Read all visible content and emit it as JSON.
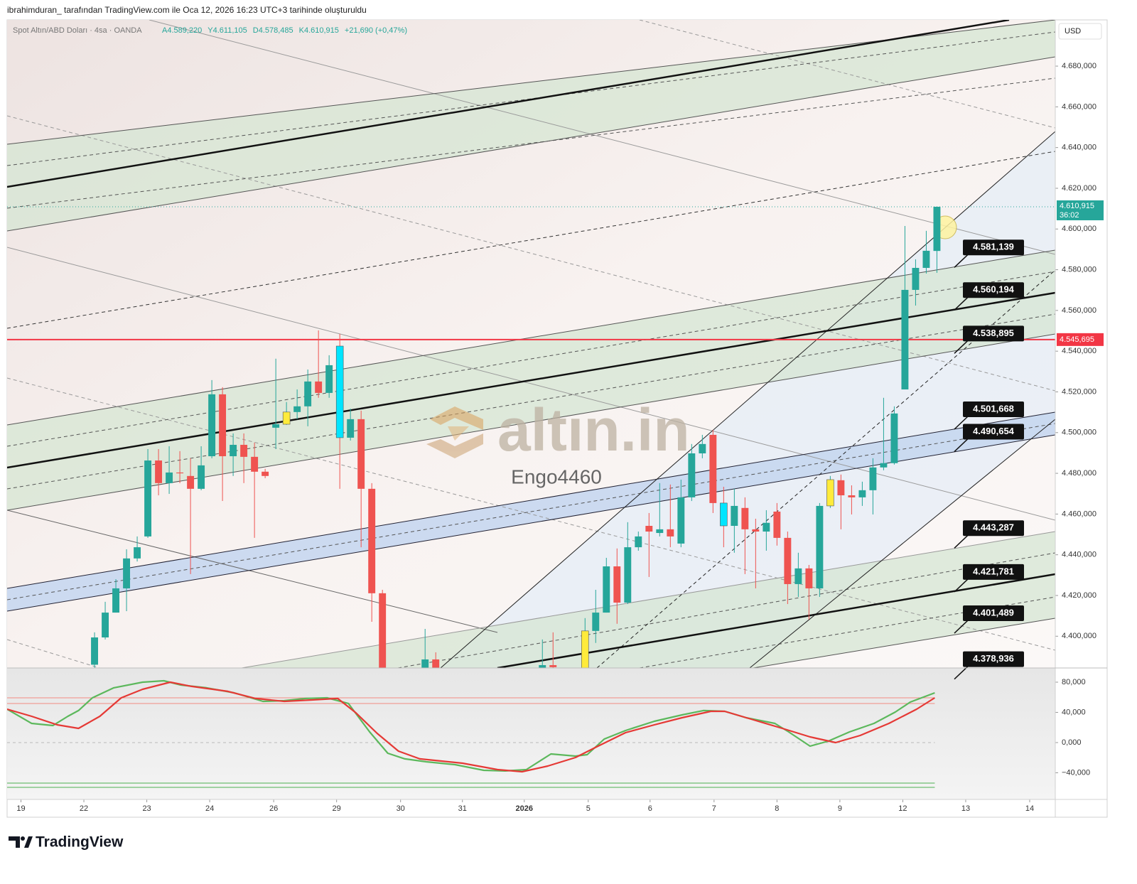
{
  "header": {
    "attribution": "ibrahimduran_ tarafından TradingView.com ile Oca 12, 2026 16:23 UTC+3 tarihinde oluşturuldu"
  },
  "chart_data": [
    {
      "type": "candlestick",
      "symbol": "Spot Altın/ABD Doları · 4sa · OANDA",
      "legend_values": [
        "A4.589,220",
        "Y4.611,105",
        "D4.578,485",
        "K4.610,915",
        "+21,690 (+0,47%)"
      ],
      "currency": "USD",
      "watermark": "altın.in",
      "author": "Engo4460",
      "up_color": "#26a69a",
      "down_color": "#ef5350",
      "highlights": [
        {
          "x": 25,
          "color": "#ffeb3b"
        },
        {
          "x": 30,
          "color": "#00e5ff"
        },
        {
          "x": 53,
          "color": "#ffeb3b"
        },
        {
          "x": 66,
          "color": "#00e5ff"
        },
        {
          "x": 76,
          "color": "#ffeb3b"
        }
      ],
      "x": [
        7,
        8,
        9,
        10,
        11,
        12,
        13,
        14,
        15,
        16,
        17,
        18,
        19,
        20,
        21,
        22,
        23,
        24,
        25,
        26,
        27,
        28,
        29,
        30,
        31,
        32,
        33,
        34,
        38,
        39,
        49,
        50,
        53,
        54,
        55,
        56,
        57,
        58,
        59,
        60,
        61,
        62,
        63,
        64,
        65,
        66,
        67,
        68,
        69,
        70,
        71,
        72,
        73,
        74,
        75,
        76,
        77,
        78,
        79,
        80,
        81,
        82,
        83,
        84,
        85,
        86
      ],
      "open": [
        4386.0,
        4399.4,
        4411.6,
        4423.5,
        4438.2,
        4449.0,
        4486.3,
        4475.2,
        4480.4,
        4478.7,
        4472.4,
        4488.4,
        4518.8,
        4488.4,
        4494.0,
        4488.1,
        4480.8,
        4502.4,
        4504.1,
        4510.1,
        4512.9,
        4525.1,
        4519.5,
        4542.5,
        4497.5,
        4506.6,
        4472.4,
        4421.1,
        4380.0,
        4388.6,
        4384.4,
        4385.8,
        4380.0,
        4402.6,
        4411.6,
        4434.3,
        4416.5,
        4443.7,
        4454.2,
        4450.7,
        4452.5,
        4445.5,
        4468.2,
        4489.8,
        4498.9,
        4465.4,
        4454.2,
        4463.0,
        4452.5,
        4451.4,
        4461.2,
        4448.3,
        4425.6,
        4433.3,
        4423.5,
        4464.0,
        4476.6,
        4469.2,
        4468.2,
        4471.7,
        4482.9,
        4485.0,
        4521.2,
        4570.1,
        4580.9,
        4589.22
      ],
      "high": [
        4401.9,
        4416.9,
        4428.0,
        4442.7,
        4449.0,
        4491.9,
        4491.9,
        4493.3,
        4490.9,
        4487.4,
        4493.3,
        4525.8,
        4522.3,
        4499.6,
        4499.6,
        4495.1,
        4482.2,
        4536.3,
        4515.0,
        4521.2,
        4531.0,
        4550.2,
        4538.0,
        4548.5,
        4511.8,
        4510.8,
        4475.2,
        4422.8,
        4403.6,
        4392.1,
        4398.4,
        4401.9,
        4408.9,
        4422.8,
        4438.5,
        4443.1,
        4456.0,
        4451.4,
        4460.5,
        4475.2,
        4474.5,
        4476.9,
        4494.4,
        4498.9,
        4501.3,
        4473.4,
        4472.4,
        4468.2,
        4457.7,
        4461.9,
        4465.4,
        4451.4,
        4441.0,
        4435.0,
        4465.4,
        4478.7,
        4479.4,
        4474.1,
        4475.9,
        4487.4,
        4517.1,
        4512.9,
        4601.5,
        4585.1,
        4599.1,
        4611.105
      ],
      "low": [
        4384.4,
        4398.4,
        4411.6,
        4412.3,
        4436.7,
        4448.3,
        4469.2,
        4469.9,
        4475.2,
        4430.5,
        4471.7,
        4487.4,
        4466.4,
        4478.7,
        4475.2,
        4448.3,
        4477.6,
        4491.9,
        4503.8,
        4506.6,
        4503.1,
        4517.1,
        4517.1,
        4472.4,
        4496.1,
        4443.7,
        4407.1,
        4380.0,
        4379.0,
        4380.0,
        4383.0,
        4383.0,
        4378.0,
        4396.7,
        4411.6,
        4406.1,
        4415.8,
        4442.0,
        4429.1,
        4449.0,
        4443.7,
        4443.7,
        4466.4,
        4487.4,
        4460.5,
        4443.7,
        4441.0,
        4430.5,
        4423.5,
        4442.0,
        4444.5,
        4415.8,
        4419.3,
        4408.2,
        4419.3,
        4463.0,
        4452.5,
        4459.8,
        4464.0,
        4459.8,
        4481.5,
        4484.3,
        4521.2,
        4562.4,
        4578.1,
        4578.485
      ],
      "close": [
        4399.4,
        4411.6,
        4423.5,
        4438.2,
        4443.7,
        4486.3,
        4475.2,
        4480.4,
        4480.0,
        4472.4,
        4483.9,
        4518.8,
        4488.4,
        4494.0,
        4488.1,
        4480.8,
        4478.7,
        4504.1,
        4510.1,
        4512.9,
        4525.1,
        4519.5,
        4533.1,
        4497.5,
        4506.6,
        4472.4,
        4421.1,
        4382.0,
        4388.6,
        4382.0,
        4385.8,
        4384.8,
        4402.6,
        4411.6,
        4434.3,
        4416.5,
        4443.7,
        4449.0,
        4451.4,
        4452.5,
        4449.0,
        4468.2,
        4489.8,
        4494.4,
        4465.4,
        4454.2,
        4464.0,
        4452.5,
        4451.4,
        4455.7,
        4448.3,
        4425.6,
        4433.3,
        4423.5,
        4464.0,
        4476.9,
        4469.2,
        4468.2,
        4471.7,
        4482.9,
        4485.0,
        4509.4,
        4570.1,
        4580.9,
        4589.3,
        4610.915
      ],
      "xlim": [
        -1.2,
        97.1
      ],
      "xticks": [
        {
          "value": 0.1,
          "label": "19"
        },
        {
          "value": 6.0,
          "label": "22"
        },
        {
          "value": 11.9,
          "label": "23"
        },
        {
          "value": 17.8,
          "label": "24"
        },
        {
          "value": 23.8,
          "label": "26"
        },
        {
          "value": 29.7,
          "label": "29"
        },
        {
          "value": 35.7,
          "label": "30"
        },
        {
          "value": 41.5,
          "label": "31"
        },
        {
          "value": 47.3,
          "label": "2026"
        },
        {
          "value": 53.3,
          "label": "5"
        },
        {
          "value": 59.1,
          "label": "6"
        },
        {
          "value": 65.1,
          "label": "7"
        },
        {
          "value": 71.0,
          "label": "8"
        },
        {
          "value": 76.9,
          "label": "9"
        },
        {
          "value": 82.8,
          "label": "12"
        },
        {
          "value": 88.7,
          "label": "13"
        },
        {
          "value": 94.7,
          "label": "14"
        }
      ],
      "ylim": [
        4384.4,
        4702.7
      ],
      "yticks": [
        {
          "value": 4400,
          "label": "4.400,000"
        },
        {
          "value": 4420,
          "label": "4.420,000"
        },
        {
          "value": 4440,
          "label": "4.440,000"
        },
        {
          "value": 4460,
          "label": "4.460,000"
        },
        {
          "value": 4480,
          "label": "4.480,000"
        },
        {
          "value": 4500,
          "label": "4.500,000"
        },
        {
          "value": 4520,
          "label": "4.520,000"
        },
        {
          "value": 4540,
          "label": "4.540,000"
        },
        {
          "value": 4560,
          "label": "4.560,000"
        },
        {
          "value": 4580,
          "label": "4.580,000"
        },
        {
          "value": 4600,
          "label": "4.600,000"
        },
        {
          "value": 4620,
          "label": "4.620,000"
        },
        {
          "value": 4640,
          "label": "4.640,000"
        },
        {
          "value": 4660,
          "label": "4.660,000"
        },
        {
          "value": 4680,
          "label": "4.680,000"
        }
      ],
      "hline": {
        "value": 4545.695,
        "label": "4.545,695",
        "color": "#f23645"
      },
      "current_price": {
        "value": 4610.915,
        "label": "4.610,915",
        "countdown": "36:02",
        "color": "#26a69a"
      },
      "price_callouts": [
        {
          "value": 4581.139,
          "label": "4.581,139"
        },
        {
          "value": 4560.194,
          "label": "4.560,194"
        },
        {
          "value": 4538.895,
          "label": "4.538,895"
        },
        {
          "value": 4501.668,
          "label": "4.501,668"
        },
        {
          "value": 4490.654,
          "label": "4.490,654"
        },
        {
          "value": 4443.287,
          "label": "4.443,287"
        },
        {
          "value": 4421.781,
          "label": "4.421,781"
        },
        {
          "value": 4401.489,
          "label": "4.401,489"
        },
        {
          "value": 4378.936,
          "label": "4.378,936"
        }
      ]
    },
    {
      "type": "line",
      "ylim": [
        -75.3,
        98.8
      ],
      "yticks": [
        {
          "value": 80,
          "label": "80,000"
        },
        {
          "value": 40,
          "label": "40,000"
        },
        {
          "value": 0,
          "label": "0,000"
        },
        {
          "value": -40,
          "label": "−40,000"
        }
      ],
      "levels": [
        {
          "value": 59.3,
          "color": "#f28b82"
        },
        {
          "value": 51.8,
          "color": "#f28b82"
        },
        {
          "value": -53.6,
          "color": "#4caf50"
        },
        {
          "value": -59.3,
          "color": "#4caf50"
        }
      ],
      "series": [
        {
          "color": "#5cb85c",
          "x": [
            -1.2,
            1.1,
            3.1,
            4.5,
            5.5,
            6.8,
            8.8,
            11.5,
            13.5,
            15.1,
            17.5,
            20.1,
            22.8,
            24.8,
            26.8,
            28.8,
            30.8,
            32.8,
            34.5,
            36.1,
            38.1,
            40.8,
            43.5,
            45.5,
            47.5,
            49.8,
            52.1,
            53.2,
            54.8,
            56.8,
            59.5,
            62.1,
            64.1,
            66.1,
            68.1,
            70.8,
            72.1,
            74.1,
            75.8,
            77.8,
            80.1,
            82.1,
            83.5,
            85.8
          ],
          "values": [
            44.2,
            25.4,
            22.6,
            34.8,
            42.4,
            59.3,
            72.5,
            80.0,
            81.9,
            76.2,
            72.5,
            65.9,
            54.6,
            55.5,
            58.4,
            59.3,
            51.8,
            14.1,
            -14.1,
            -21.6,
            -25.4,
            -29.2,
            -36.7,
            -37.6,
            -35.8,
            -15.1,
            -17.9,
            -16.0,
            4.7,
            16.0,
            28.2,
            36.7,
            42.4,
            41.4,
            32.9,
            25.4,
            14.1,
            -4.7,
            1.9,
            14.1,
            25.4,
            40.5,
            53.6,
            65.9
          ]
        },
        {
          "color": "#e53935",
          "x": [
            -1.2,
            1.1,
            3.5,
            5.5,
            7.5,
            9.5,
            11.5,
            14.1,
            16.1,
            19.5,
            22.1,
            24.8,
            27.5,
            29.8,
            31.5,
            33.5,
            35.5,
            37.5,
            41.5,
            44.8,
            47.1,
            49.5,
            52.1,
            54.1,
            56.8,
            59.5,
            62.1,
            64.8,
            66.1,
            68.8,
            71.5,
            74.1,
            76.5,
            78.8,
            81.5,
            84.1,
            85.8
          ],
          "values": [
            44.2,
            34.8,
            23.5,
            18.8,
            34.8,
            59.3,
            70.6,
            80.0,
            74.4,
            67.8,
            58.4,
            54.6,
            56.5,
            58.4,
            39.5,
            12.2,
            -11.3,
            -21.6,
            -27.3,
            -35.8,
            -38.6,
            -31.1,
            -19.8,
            -5.6,
            13.2,
            23.5,
            32.9,
            41.4,
            41.4,
            30.1,
            18.8,
            7.5,
            0.0,
            9.4,
            25.4,
            44.2,
            59.3
          ]
        }
      ]
    }
  ],
  "footer": {
    "brand": "TradingView"
  }
}
